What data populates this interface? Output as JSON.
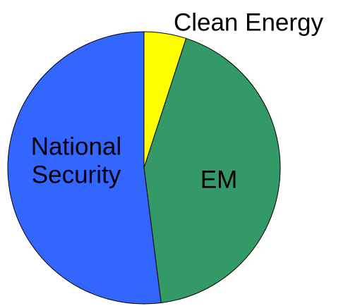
{
  "chart_data": {
    "type": "pie",
    "title": "",
    "start": "12 o'clock",
    "direction": "clockwise",
    "slices": [
      {
        "label": "Clean Energy",
        "value": 5,
        "color": "#ffff00",
        "label_lines": [
          "Clean Energy"
        ],
        "label_color": "#000000"
      },
      {
        "label": "EM",
        "value": 43,
        "color": "#339966",
        "label_lines": [
          "EM"
        ],
        "label_color": "#ffffff"
      },
      {
        "label": "National Security",
        "value": 52,
        "color": "#3366ff",
        "label_lines": [
          "National",
          "Security"
        ],
        "label_color": "#ffffff"
      }
    ],
    "legend": "none"
  }
}
